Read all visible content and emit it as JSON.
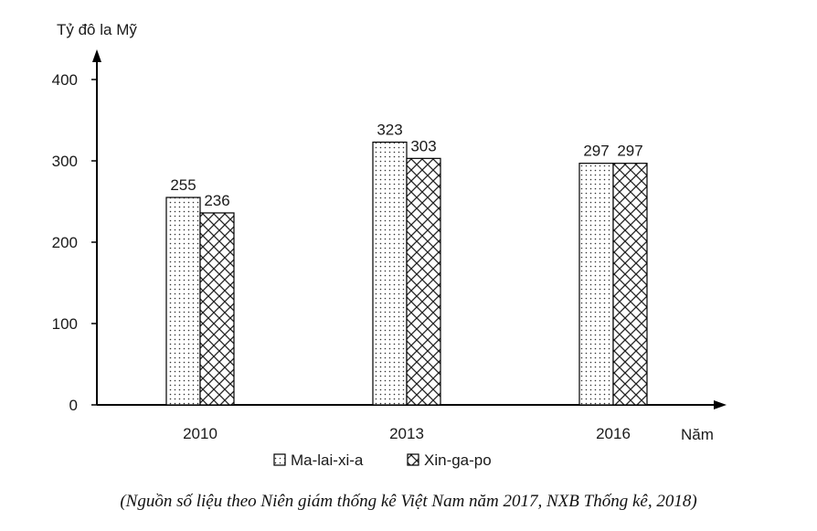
{
  "chart_data": {
    "type": "bar",
    "categories": [
      "2010",
      "2013",
      "2016"
    ],
    "series": [
      {
        "name": "Ma-lai-xi-a",
        "values": [
          255,
          323,
          297
        ],
        "pattern": "dots"
      },
      {
        "name": "Xin-ga-po",
        "values": [
          236,
          303,
          297
        ],
        "pattern": "crosshatch"
      }
    ],
    "ylabel": "Tỷ đô la Mỹ",
    "xlabel": "Năm",
    "ylim": [
      0,
      400
    ],
    "yticks": [
      0,
      100,
      200,
      300,
      400
    ],
    "legend": "bottom",
    "grid": false
  },
  "source_note": "(Nguồn số liệu theo Niên giám thống kê Việt Nam năm 2017, NXB Thống kê, 2018)"
}
